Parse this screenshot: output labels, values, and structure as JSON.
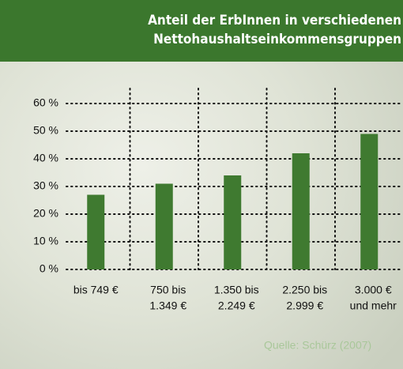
{
  "chart_data": {
    "type": "bar",
    "title": [
      "Anteil der ErbInnen in verschiedenen",
      "Nettohaushaltseinkommensgruppen"
    ],
    "categories": [
      [
        "bis 749 €"
      ],
      [
        "750 bis",
        "1.349 €"
      ],
      [
        "1.350 bis",
        "2.249 €"
      ],
      [
        "2.250 bis",
        "2.999 €"
      ],
      [
        "3.000 €",
        "und mehr"
      ]
    ],
    "values": [
      27,
      31,
      34,
      42,
      49
    ],
    "color": "#3f7a30",
    "ylim": [
      0,
      60
    ],
    "yticks": [
      {
        "value": 0,
        "label": "0 %"
      },
      {
        "value": 10,
        "label": "10 %"
      },
      {
        "value": 20,
        "label": "20 %"
      },
      {
        "value": 30,
        "label": "30 %"
      },
      {
        "value": 40,
        "label": "40 %"
      },
      {
        "value": 50,
        "label": "50 %"
      },
      {
        "value": 60,
        "label": "60 %"
      }
    ],
    "grid": true,
    "source": "Quelle: Schürz (2007)"
  }
}
